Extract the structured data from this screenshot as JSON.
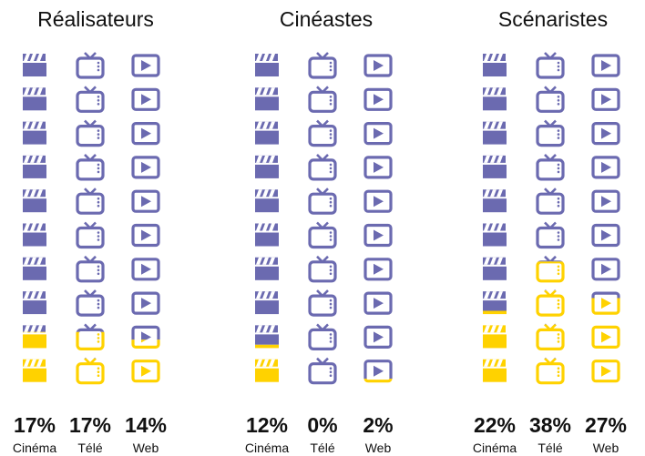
{
  "chart_data": {
    "type": "pictogram",
    "units_per_column": 10,
    "colors": {
      "base": "#6b6ab0",
      "highlight": "#ffd200"
    },
    "icon_names": {
      "Cinéma": "clapperboard-icon",
      "Télé": "tv-icon",
      "Web": "play-button-icon"
    },
    "groups": [
      {
        "title": "Réalisateurs",
        "items": [
          {
            "label": "Cinéma",
            "value": 17,
            "value_label": "17%"
          },
          {
            "label": "Télé",
            "value": 17,
            "value_label": "17%"
          },
          {
            "label": "Web",
            "value": 14,
            "value_label": "14%"
          }
        ]
      },
      {
        "title": "Cinéastes",
        "items": [
          {
            "label": "Cinéma",
            "value": 12,
            "value_label": "12%"
          },
          {
            "label": "Télé",
            "value": 0,
            "value_label": "0%"
          },
          {
            "label": "Web",
            "value": 2,
            "value_label": "2%"
          }
        ]
      },
      {
        "title": "Scénaristes",
        "items": [
          {
            "label": "Cinéma",
            "value": 22,
            "value_label": "22%"
          },
          {
            "label": "Télé",
            "value": 38,
            "value_label": "38%"
          },
          {
            "label": "Web",
            "value": 27,
            "value_label": "27%"
          }
        ]
      }
    ]
  }
}
